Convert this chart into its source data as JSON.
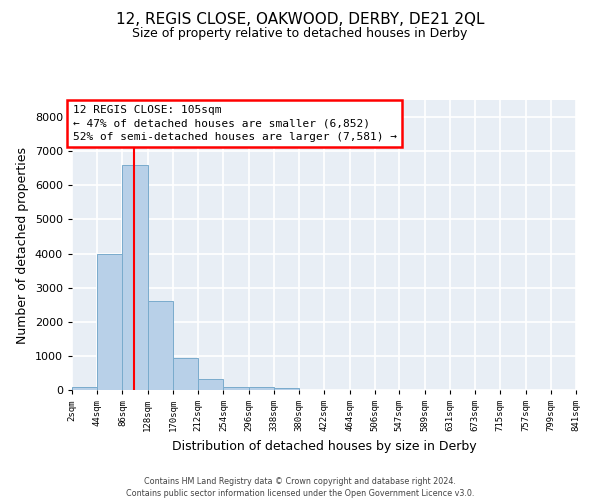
{
  "title": "12, REGIS CLOSE, OAKWOOD, DERBY, DE21 2QL",
  "subtitle": "Size of property relative to detached houses in Derby",
  "xlabel": "Distribution of detached houses by size in Derby",
  "ylabel": "Number of detached properties",
  "bar_color": "#b8d0e8",
  "bar_edge_color": "#7aabcc",
  "background_color": "#e8eef5",
  "grid_color": "#ffffff",
  "red_line_x": 105,
  "annotation_title": "12 REGIS CLOSE: 105sqm",
  "annotation_line1": "← 47% of detached houses are smaller (6,852)",
  "annotation_line2": "52% of semi-detached houses are larger (7,581) →",
  "bin_edges": [
    2,
    44,
    86,
    128,
    170,
    212,
    254,
    296,
    338,
    380,
    422,
    464,
    506,
    547,
    589,
    631,
    673,
    715,
    757,
    799,
    841
  ],
  "bin_counts": [
    75,
    4000,
    6600,
    2600,
    950,
    310,
    100,
    80,
    50,
    0,
    0,
    0,
    0,
    0,
    0,
    0,
    0,
    0,
    0,
    0
  ],
  "ylim": [
    0,
    8500
  ],
  "yticks": [
    0,
    1000,
    2000,
    3000,
    4000,
    5000,
    6000,
    7000,
    8000
  ],
  "tick_labels": [
    "2sqm",
    "44sqm",
    "86sqm",
    "128sqm",
    "170sqm",
    "212sqm",
    "254sqm",
    "296sqm",
    "338sqm",
    "380sqm",
    "422sqm",
    "464sqm",
    "506sqm",
    "547sqm",
    "589sqm",
    "631sqm",
    "673sqm",
    "715sqm",
    "757sqm",
    "799sqm",
    "841sqm"
  ],
  "footer1": "Contains HM Land Registry data © Crown copyright and database right 2024.",
  "footer2": "Contains public sector information licensed under the Open Government Licence v3.0."
}
